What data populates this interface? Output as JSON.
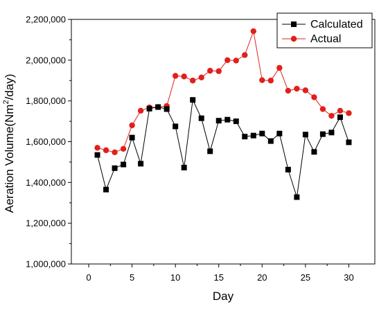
{
  "chart_data": {
    "type": "line",
    "xlabel": "Day",
    "ylabel_main": "Aeration Volume(Nm",
    "ylabel_sup": "2",
    "ylabel_end": "/day)",
    "xlim": [
      -2,
      33
    ],
    "ylim": [
      1000000,
      2200000
    ],
    "xticks": [
      0,
      5,
      10,
      15,
      20,
      25,
      30
    ],
    "xtick_labels": [
      "0",
      "5",
      "10",
      "15",
      "20",
      "25",
      "30"
    ],
    "yticks": [
      1000000,
      1200000,
      1400000,
      1600000,
      1800000,
      2000000,
      2200000
    ],
    "ytick_labels": [
      "1,000,000",
      "1,200,000",
      "1,400,000",
      "1,600,000",
      "1,800,000",
      "2,000,000",
      "2,200,000"
    ],
    "legend_position": "top-right",
    "x": [
      1,
      2,
      3,
      4,
      5,
      6,
      7,
      8,
      9,
      10,
      11,
      12,
      13,
      14,
      15,
      16,
      17,
      18,
      19,
      20,
      21,
      22,
      23,
      24,
      25,
      26,
      27,
      28,
      29,
      30
    ],
    "series": [
      {
        "name": "Calculated",
        "color": "#000000",
        "marker": "square",
        "values": [
          1535000,
          1365000,
          1470000,
          1488000,
          1620000,
          1492000,
          1762000,
          1770000,
          1760000,
          1675000,
          1473000,
          1805000,
          1715000,
          1553000,
          1703000,
          1708000,
          1700000,
          1625000,
          1630000,
          1640000,
          1603000,
          1640000,
          1463000,
          1328000,
          1635000,
          1550000,
          1637000,
          1645000,
          1720000,
          1597000
        ]
      },
      {
        "name": "Actual",
        "color": "#e0201c",
        "marker": "circle",
        "values": [
          1570000,
          1558000,
          1548000,
          1565000,
          1680000,
          1752000,
          1768000,
          1770000,
          1775000,
          1923000,
          1920000,
          1900000,
          1915000,
          1948000,
          1946000,
          2000000,
          1998000,
          2025000,
          2142000,
          1902000,
          1900000,
          1962000,
          1850000,
          1860000,
          1852000,
          1818000,
          1760000,
          1727000,
          1752000,
          1740000
        ]
      }
    ]
  }
}
